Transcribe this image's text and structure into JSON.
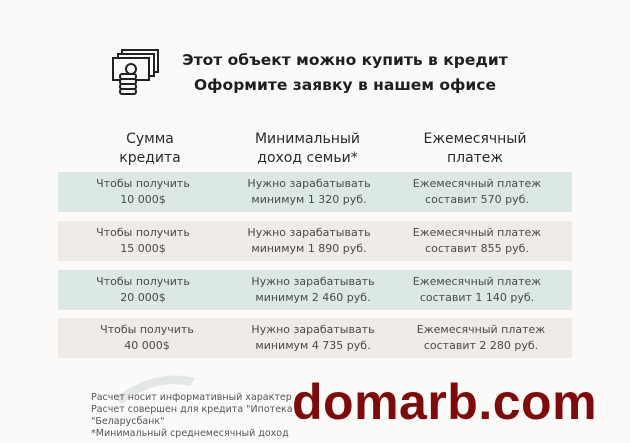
{
  "header": {
    "icon": "money-coins-icon",
    "line1": "Этот объект можно купить в кредит",
    "line2": "Оформите заявку в нашем офисе"
  },
  "columns": [
    {
      "line1": "Сумма",
      "line2": "кредита"
    },
    {
      "line1": "Минимальный",
      "line2": "доход семьи*"
    },
    {
      "line1": "Ежемесячный",
      "line2": "платеж"
    }
  ],
  "rows": [
    {
      "amount_label": "Чтобы получить",
      "amount": "10 000$",
      "income_label": "Нужно зарабатывать",
      "income": "минимум 1 320 руб.",
      "payment_label": "Ежемесячный платеж",
      "payment": "составит 570 руб."
    },
    {
      "amount_label": "Чтобы получить",
      "amount": "15 000$",
      "income_label": "Нужно зарабатывать",
      "income": "минимум 1 890 руб.",
      "payment_label": "Ежемесячный платеж",
      "payment": "составит 855 руб."
    },
    {
      "amount_label": "Чтобы получить",
      "amount": "20 000$",
      "income_label": "Нужно зарабатывать",
      "income": "минимум 2 460 руб.",
      "payment_label": "Ежемесячный платеж",
      "payment": "составит 1 140 руб."
    },
    {
      "amount_label": "Чтобы получить",
      "amount": "40 000$",
      "income_label": "Нужно зарабатывать",
      "income": "минимум 4 735 руб.",
      "payment_label": "Ежемесячный платеж",
      "payment": "составит 2 280 руб."
    }
  ],
  "notes": [
    "Расчет носит информативный характер",
    "Расчет совершен для кредита \"Ипотека",
    "\"Беларусбанк\"",
    "*Минимальный среднемесячный доход"
  ],
  "watermark": "domarb.com",
  "colors": {
    "row_teal": "#dce8e4",
    "row_beige": "#eeebe8",
    "watermark": "#7e0b0b"
  }
}
